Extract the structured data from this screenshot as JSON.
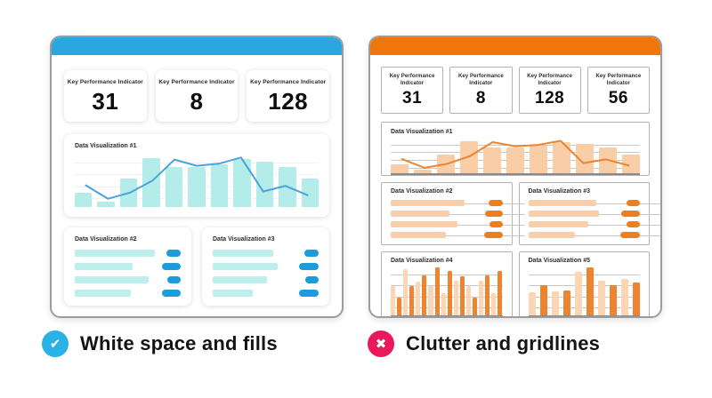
{
  "captions": {
    "good": {
      "label": "White space and fills",
      "icon": "check-icon",
      "icon_glyph": "✔",
      "icon_color": "#29B2E5"
    },
    "bad": {
      "label": "Clutter and gridlines",
      "icon": "cross-icon",
      "icon_glyph": "✖",
      "icon_color": "#E9195B"
    }
  },
  "good_dashboard": {
    "header_color": "#2BA7E0",
    "kpis": [
      {
        "label": "Key Performance Indicator",
        "value": "31"
      },
      {
        "label": "Key Performance Indicator",
        "value": "8"
      },
      {
        "label": "Key Performance Indicator",
        "value": "128"
      }
    ]
  },
  "bad_dashboard": {
    "header_color": "#F0760C",
    "kpis": [
      {
        "label": "Key Performance Indicator",
        "value": "31"
      },
      {
        "label": "Key Performance Indicator",
        "value": "8"
      },
      {
        "label": "Key Performance Indicator",
        "value": "128"
      },
      {
        "label": "Key Performance Indicator",
        "value": "56"
      }
    ]
  },
  "chart_data": [
    {
      "id": "good-viz1",
      "title": "Data Visualization #1",
      "type": "bar",
      "render": "combo",
      "values": [
        28,
        10,
        55,
        95,
        78,
        78,
        82,
        93,
        88,
        77,
        55
      ],
      "overlay_line": [
        42,
        16,
        28,
        51,
        92,
        80,
        84,
        96,
        30,
        41,
        23
      ],
      "ylim": [
        0,
        100
      ],
      "grid": "faint",
      "legend": "none",
      "bar_color": "#B4ECE9",
      "line_color": "#4AA3DB",
      "grid_color": "#EDF3F4",
      "grid_positions": [
        14,
        37,
        60,
        83
      ],
      "axis": false,
      "gap": 6
    },
    {
      "id": "good-viz2",
      "title": "Data Visualization #2",
      "type": "bar",
      "render": "hbars",
      "orientation": "horizontal",
      "values": [
        95,
        72,
        86,
        70
      ],
      "ylim": [
        0,
        100
      ],
      "grid": "off",
      "bar_color": "#BDEFEC",
      "pill_color": "#1E9CD9",
      "pill_widths": [
        16,
        21,
        15,
        21
      ],
      "row_grid": false
    },
    {
      "id": "good-viz3",
      "title": "Data Visualization #3",
      "type": "bar",
      "render": "hbars",
      "orientation": "horizontal",
      "values": [
        72,
        82,
        64,
        50
      ],
      "ylim": [
        0,
        100
      ],
      "grid": "off",
      "bar_color": "#BDEFEC",
      "pill_color": "#1E9CD9",
      "pill_widths": [
        16,
        22,
        15,
        22
      ],
      "row_grid": false
    },
    {
      "id": "bad-viz1",
      "title": "Data Visualization #1",
      "type": "bar",
      "render": "combo",
      "values": [
        28,
        10,
        55,
        95,
        78,
        78,
        82,
        93,
        88,
        77,
        55
      ],
      "overlay_line": [
        42,
        16,
        28,
        51,
        92,
        80,
        84,
        96,
        30,
        41,
        23
      ],
      "ylim": [
        0,
        100
      ],
      "grid": "on",
      "legend": "none",
      "bar_color": "#F9CDA6",
      "line_color": "#EF8430",
      "grid_color": "#C8C8C8",
      "grid_positions": [
        14,
        37,
        60,
        83
      ],
      "axis": true,
      "axis_color": "#8A8A8A",
      "gap": 6
    },
    {
      "id": "bad-viz2",
      "title": "Data Visualization #2",
      "type": "bar",
      "render": "hbars",
      "orientation": "horizontal",
      "values": [
        82,
        68,
        73,
        64
      ],
      "ylim": [
        0,
        100
      ],
      "grid": "on",
      "bar_color": "#F9CFAB",
      "pill_color": "#EE7F1F",
      "pill_widths": [
        16,
        20,
        15,
        21
      ],
      "row_grid": true,
      "grid_color": "#C8C8C8"
    },
    {
      "id": "bad-viz3",
      "title": "Data Visualization #3",
      "type": "bar",
      "render": "hbars",
      "orientation": "horizontal",
      "values": [
        75,
        82,
        66,
        55
      ],
      "ylim": [
        0,
        100
      ],
      "grid": "on",
      "bar_color": "#F9CFAB",
      "pill_color": "#EE7F1F",
      "pill_widths": [
        15,
        21,
        15,
        22
      ],
      "row_grid": true,
      "grid_color": "#C8C8C8"
    },
    {
      "id": "bad-viz4",
      "title": "Data Visualization #4",
      "type": "bar",
      "render": "columns",
      "values": [
        61,
        38,
        97,
        61,
        70,
        83,
        61,
        100,
        47,
        93,
        72,
        81,
        61,
        38,
        72,
        83,
        47,
        93
      ],
      "ylim": [
        0,
        100
      ],
      "grid": "on",
      "bar_colors": [
        "#FAD6B4",
        "#EE8330"
      ],
      "grid_color": "#C8C8C8",
      "grid_positions": [
        14,
        37,
        60,
        83
      ],
      "axis": true,
      "axis_color": "#8A8A8A",
      "gap": 2
    },
    {
      "id": "bad-viz5",
      "title": "Data Visualization #5",
      "type": "bar",
      "render": "columns",
      "values": [
        49,
        63,
        51,
        53,
        91,
        100,
        73,
        64,
        76,
        68
      ],
      "ylim": [
        0,
        100
      ],
      "grid": "on",
      "bar_colors": [
        "#FAD6B4",
        "#EE8330"
      ],
      "grid_color": "#C8C8C8",
      "grid_positions": [
        14,
        37,
        60,
        83
      ],
      "axis": true,
      "axis_color": "#8A8A8A",
      "gap": 5
    }
  ]
}
